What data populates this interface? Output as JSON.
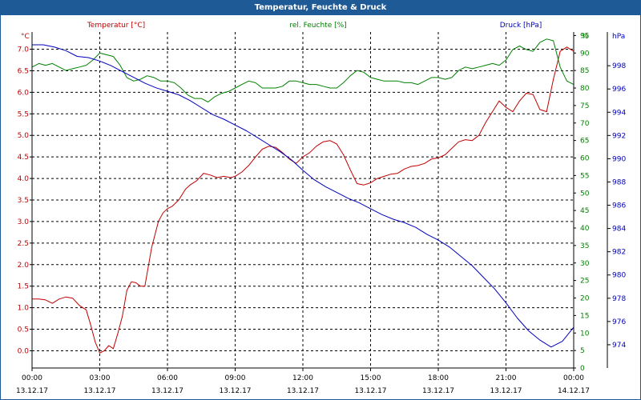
{
  "window": {
    "title": "Temperatur, Feuchte & Druck"
  },
  "chart_data": {
    "type": "line",
    "title": "Temperatur, Feuchte & Druck",
    "x_ticks": [
      {
        "time": "00:00",
        "date": "13.12.17"
      },
      {
        "time": "03:00",
        "date": "13.12.17"
      },
      {
        "time": "06:00",
        "date": "13.12.17"
      },
      {
        "time": "09:00",
        "date": "13.12.17"
      },
      {
        "time": "12:00",
        "date": "13.12.17"
      },
      {
        "time": "15:00",
        "date": "13.12.17"
      },
      {
        "time": "18:00",
        "date": "13.12.17"
      },
      {
        "time": "21:00",
        "date": "13.12.17"
      },
      {
        "time": "00:00",
        "date": "14.12.17"
      }
    ],
    "x_range_hours": [
      0,
      24
    ],
    "grid": true,
    "axes": {
      "temperature": {
        "unit": "°C",
        "range": [
          -0.4,
          7.4
        ],
        "ticks": [
          "7.0",
          "6.5",
          "6.0",
          "5.5",
          "5.0",
          "4.5",
          "4.0",
          "3.5",
          "3.0",
          "2.5",
          "2.0",
          "1.5",
          "1.0",
          "0.5",
          "0.0"
        ],
        "tick_values": [
          7.0,
          6.5,
          6.0,
          5.5,
          5.0,
          4.5,
          4.0,
          3.5,
          3.0,
          2.5,
          2.0,
          1.5,
          1.0,
          0.5,
          0.0
        ]
      },
      "humidity": {
        "unit": "%",
        "range": [
          0,
          96
        ],
        "ticks": [
          "95",
          "90",
          "85",
          "80",
          "75",
          "70",
          "65",
          "60",
          "55",
          "50",
          "45",
          "40",
          "35",
          "30",
          "25",
          "20",
          "15",
          "10",
          "5",
          "0"
        ],
        "tick_values": [
          95,
          90,
          85,
          80,
          75,
          70,
          65,
          60,
          55,
          50,
          45,
          40,
          35,
          30,
          25,
          20,
          15,
          10,
          5,
          0
        ]
      },
      "pressure": {
        "unit": "hPa",
        "range": [
          972,
          1000.9
        ],
        "ticks": [
          "998",
          "996",
          "994",
          "992",
          "990",
          "988",
          "986",
          "984",
          "982",
          "980",
          "978",
          "976",
          "974"
        ],
        "tick_values": [
          998,
          996,
          994,
          992,
          990,
          988,
          986,
          984,
          982,
          980,
          978,
          976,
          974
        ]
      }
    },
    "series": [
      {
        "name": "Temperatur [°C]",
        "color": "#c00000",
        "axis": "temperature",
        "x": [
          0,
          0.3,
          0.6,
          0.9,
          1.2,
          1.5,
          1.8,
          2.1,
          2.4,
          2.6,
          2.8,
          3.0,
          3.2,
          3.4,
          3.6,
          3.8,
          4.0,
          4.2,
          4.4,
          4.6,
          4.8,
          5.0,
          5.3,
          5.6,
          5.8,
          6.0,
          6.2,
          6.5,
          6.8,
          7.0,
          7.3,
          7.6,
          7.9,
          8.2,
          8.5,
          8.8,
          9.0,
          9.3,
          9.6,
          9.9,
          10.2,
          10.5,
          10.8,
          11.1,
          11.4,
          11.7,
          12.0,
          12.3,
          12.6,
          12.9,
          13.2,
          13.5,
          13.8,
          14.1,
          14.4,
          14.7,
          15.0,
          15.3,
          15.6,
          15.9,
          16.2,
          16.5,
          16.8,
          17.1,
          17.4,
          17.7,
          18.0,
          18.3,
          18.6,
          18.9,
          19.2,
          19.5,
          19.8,
          20.1,
          20.4,
          20.7,
          21.0,
          21.3,
          21.6,
          21.9,
          22.2,
          22.5,
          22.8,
          23.1,
          23.4,
          23.7,
          24.0
        ],
        "values": [
          1.2,
          1.2,
          1.18,
          1.1,
          1.2,
          1.25,
          1.22,
          1.05,
          0.95,
          0.6,
          0.2,
          -0.05,
          0.0,
          0.12,
          0.05,
          0.4,
          0.8,
          1.4,
          1.6,
          1.58,
          1.5,
          1.5,
          2.4,
          3.0,
          3.2,
          3.3,
          3.35,
          3.5,
          3.75,
          3.85,
          3.95,
          4.12,
          4.08,
          4.02,
          4.05,
          4.02,
          4.05,
          4.15,
          4.3,
          4.5,
          4.68,
          4.75,
          4.72,
          4.6,
          4.45,
          4.35,
          4.5,
          4.6,
          4.75,
          4.85,
          4.88,
          4.8,
          4.55,
          4.2,
          3.88,
          3.85,
          3.9,
          4.0,
          4.05,
          4.1,
          4.12,
          4.22,
          4.28,
          4.3,
          4.35,
          4.45,
          4.48,
          4.55,
          4.7,
          4.85,
          4.9,
          4.88,
          5.0,
          5.3,
          5.55,
          5.8,
          5.65,
          5.55,
          5.8,
          5.98,
          5.95,
          5.6,
          5.55,
          6.3,
          6.95,
          7.05,
          6.95
        ]
      },
      {
        "name": "rel. Feuchte [%]",
        "color": "#008000",
        "axis": "humidity",
        "x": [
          0,
          0.3,
          0.6,
          0.9,
          1.2,
          1.5,
          1.8,
          2.1,
          2.4,
          2.7,
          3.0,
          3.3,
          3.6,
          3.9,
          4.2,
          4.5,
          4.8,
          5.1,
          5.4,
          5.7,
          6.0,
          6.3,
          6.6,
          6.9,
          7.2,
          7.5,
          7.8,
          8.1,
          8.4,
          8.7,
          9.0,
          9.3,
          9.6,
          9.9,
          10.2,
          10.5,
          10.8,
          11.1,
          11.4,
          11.7,
          12.0,
          12.3,
          12.6,
          12.9,
          13.2,
          13.5,
          13.8,
          14.1,
          14.4,
          14.7,
          15.0,
          15.3,
          15.6,
          15.9,
          16.2,
          16.5,
          16.8,
          17.1,
          17.4,
          17.7,
          18.0,
          18.3,
          18.6,
          18.9,
          19.2,
          19.5,
          19.8,
          20.1,
          20.4,
          20.7,
          21.0,
          21.3,
          21.6,
          21.9,
          22.2,
          22.5,
          22.8,
          23.1,
          23.4,
          23.7,
          24.0
        ],
        "values": [
          86,
          87,
          86.5,
          87,
          86,
          85,
          85.5,
          86,
          86.5,
          88,
          90,
          89.5,
          89,
          86.5,
          83,
          82,
          82.5,
          83.5,
          83,
          82,
          82,
          81.5,
          80,
          78,
          77,
          77,
          76,
          77.5,
          78.5,
          79,
          80,
          81,
          82,
          81.5,
          80,
          80,
          80,
          80.5,
          82,
          82,
          81.5,
          81,
          81,
          80.5,
          80,
          80,
          81.5,
          83.5,
          85,
          84.5,
          83,
          82.5,
          82,
          82,
          82,
          81.5,
          81.5,
          81,
          82,
          83,
          83,
          82.5,
          83,
          85,
          86,
          85.5,
          86,
          86.5,
          87,
          86.5,
          88,
          91,
          92,
          91,
          90.5,
          93,
          94,
          93.5,
          86,
          82,
          81
        ]
      },
      {
        "name": "Druck [hPa]",
        "color": "#0000c0",
        "axis": "pressure",
        "x": [
          0,
          0.5,
          1.0,
          1.5,
          2.0,
          2.5,
          3.0,
          3.5,
          4.0,
          4.5,
          5.0,
          5.5,
          6.0,
          6.5,
          7.0,
          7.5,
          8.0,
          8.5,
          9.0,
          9.5,
          10.0,
          10.5,
          11.0,
          11.5,
          12.0,
          12.5,
          13.0,
          13.5,
          14.0,
          14.5,
          15.0,
          15.5,
          16.0,
          16.5,
          17.0,
          17.5,
          18.0,
          18.5,
          19.0,
          19.5,
          20.0,
          20.5,
          21.0,
          21.5,
          22.0,
          22.5,
          23.0,
          23.5,
          24.0
        ],
        "values": [
          999.8,
          999.8,
          999.6,
          999.3,
          998.8,
          998.7,
          998.4,
          998.0,
          997.5,
          997.0,
          996.5,
          996.1,
          995.8,
          995.5,
          995.0,
          994.4,
          993.8,
          993.4,
          992.9,
          992.4,
          991.8,
          991.2,
          990.6,
          989.9,
          989.0,
          988.2,
          987.6,
          987.1,
          986.6,
          986.2,
          985.7,
          985.2,
          984.8,
          984.5,
          984.1,
          983.5,
          983.0,
          982.4,
          981.6,
          980.8,
          979.8,
          978.8,
          977.6,
          976.3,
          975.2,
          974.4,
          973.8,
          974.3,
          975.5
        ]
      }
    ]
  }
}
